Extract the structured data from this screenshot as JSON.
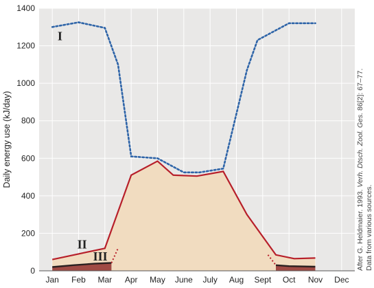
{
  "chart_data": {
    "type": "line",
    "xlabel": "",
    "ylabel": "Daily energy use (kJ/day)",
    "ylim": [
      0,
      1400
    ],
    "yticks": [
      "0",
      "200",
      "400",
      "600",
      "800",
      "1000",
      "1200",
      "1400"
    ],
    "categories": [
      "Jan",
      "Feb",
      "Mar",
      "Apr",
      "May",
      "June",
      "July",
      "Aug",
      "Sept",
      "Oct",
      "Nov",
      "Dec"
    ],
    "grid": true,
    "colors": {
      "plot_bg": "#e9e8e7",
      "grid": "#ffffff",
      "series_I": "#2e64a8",
      "series_II": "#b71f2a",
      "series_II_fill": "#f1dcc0",
      "series_III": "#2b2020",
      "series_III_fill": "#a04a44"
    },
    "series": [
      {
        "name": "I",
        "style": "dotted",
        "x": [
          0.0,
          1.0,
          2.0,
          2.5,
          3.0,
          4.0,
          5.0,
          5.6,
          6.5,
          7.4,
          7.8,
          8.4,
          9.0,
          10.0
        ],
        "y": [
          1300,
          1325,
          1295,
          1100,
          610,
          600,
          525,
          525,
          545,
          1070,
          1230,
          1275,
          1320,
          1320
        ]
      },
      {
        "name": "II",
        "style": "solid",
        "x": [
          0.0,
          1.0,
          2.0,
          3.0,
          4.0,
          4.6,
          5.5,
          6.5,
          7.4,
          8.5,
          9.2,
          10.0
        ],
        "y": [
          60,
          90,
          120,
          510,
          585,
          510,
          505,
          530,
          300,
          85,
          65,
          68
        ]
      },
      {
        "name": "III",
        "style": "solid",
        "x": [
          0.0,
          0.8,
          1.6,
          2.25,
          8.5,
          9.0,
          10.0
        ],
        "y": [
          20,
          30,
          38,
          42,
          30,
          25,
          22
        ]
      }
    ],
    "source_note": {
      "prefix": "After G. Heldmaier. 1993.",
      "journal": "Verh. Dtsch. Zool. Ges.",
      "citation": "86[2]: 67–77.",
      "line2": "Data from various sources."
    }
  }
}
